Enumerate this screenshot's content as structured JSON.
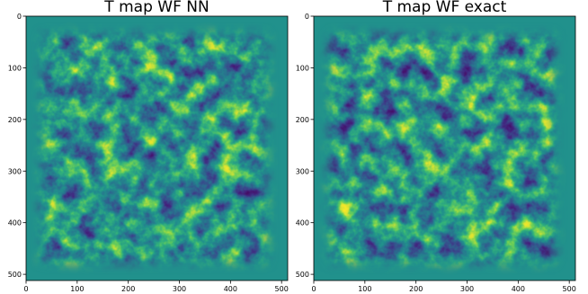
{
  "chart_data": [
    {
      "type": "image",
      "title": "T map WF NN",
      "colormap": "viridis",
      "xlim": [
        0,
        512
      ],
      "ylim": [
        0,
        512
      ],
      "y_inverted": true,
      "xticks": [
        0,
        100,
        200,
        300,
        400,
        500
      ],
      "yticks": [
        0,
        100,
        200,
        300,
        400,
        500
      ]
    },
    {
      "type": "image",
      "title": "T map WF exact",
      "colormap": "viridis",
      "xlim": [
        0,
        512
      ],
      "ylim": [
        0,
        512
      ],
      "y_inverted": true,
      "xticks": [
        0,
        100,
        200,
        300,
        400,
        500
      ],
      "yticks": [
        0,
        100,
        200,
        300,
        400,
        500
      ]
    }
  ]
}
